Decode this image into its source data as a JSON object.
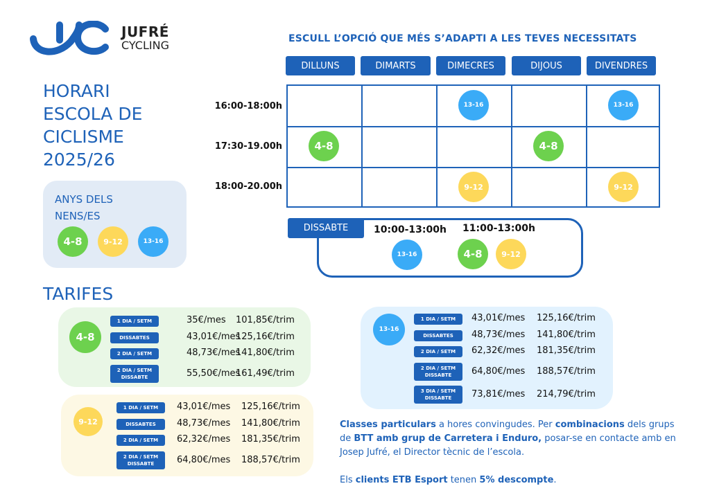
{
  "brand": {
    "name": "JUFRÉ",
    "sub": "CYCLING",
    "logo_text": "JC"
  },
  "title_lines": [
    "HORARI",
    "ESCOLA DE",
    "CICLISME",
    "2025/26"
  ],
  "headline": "ESCULL L’OPCIÓ QUE MÉS S’ADAPTI A LES TEVES NECESSITATS",
  "days": [
    "DILLUNS",
    "DIMARTS",
    "DIMECRES",
    "DIJOUS",
    "DIVENDRES"
  ],
  "times": [
    "16:00-18:00h",
    "17:30-19.00h",
    "18:00-20.00h"
  ],
  "schedule": [
    {
      "row": 0,
      "col": 2,
      "group": "13-16"
    },
    {
      "row": 0,
      "col": 4,
      "group": "13-16"
    },
    {
      "row": 1,
      "col": 0,
      "group": "4-8"
    },
    {
      "row": 1,
      "col": 3,
      "group": "4-8"
    },
    {
      "row": 2,
      "col": 2,
      "group": "9-12"
    },
    {
      "row": 2,
      "col": 4,
      "group": "9-12"
    }
  ],
  "saturday": {
    "label": "DISSABTE",
    "slot1": "10:00-13:00h",
    "slot2": "11:00-13:00h",
    "groups1": [
      "13-16"
    ],
    "groups2": [
      "4-8",
      "9-12"
    ]
  },
  "ages": {
    "title_line1": "ANYS DELS",
    "title_line2": "NENS/ES",
    "groups": [
      "4-8",
      "9-12",
      "13-16"
    ]
  },
  "colors": {
    "4-8": "#6dd14e",
    "9-12": "#fdd85a",
    "13-16": "#3aabf7",
    "accent": "#1e62b8"
  },
  "tarifes_title": "TARIFES",
  "tariffs": [
    {
      "group": "4-8",
      "rows": [
        [
          "1 DIA / SETM",
          "35€/mes",
          "101,85€/trim"
        ],
        [
          "DISSABTES",
          "43,01€/mes",
          "125,16€/trim"
        ],
        [
          "2 DIA / SETM",
          "48,73€/mes",
          "141,80€/trim"
        ],
        [
          "2 DIA / SETM\nDISSABTE",
          "55,50€/mes",
          "161,49€/trim"
        ]
      ]
    },
    {
      "group": "9-12",
      "rows": [
        [
          "1 DIA / SETM",
          "43,01€/mes",
          "125,16€/trim"
        ],
        [
          "DISSABTES",
          "48,73€/mes",
          "141,80€/trim"
        ],
        [
          "2 DIA / SETM",
          "62,32€/mes",
          "181,35€/trim"
        ],
        [
          "2 DIA / SETM\nDISSABTE",
          "64,80€/mes",
          "188,57€/trim"
        ]
      ]
    },
    {
      "group": "13-16",
      "rows": [
        [
          "1 DIA / SETM",
          "43,01€/mes",
          "125,16€/trim"
        ],
        [
          "DISSABTES",
          "48,73€/mes",
          "141,80€/trim"
        ],
        [
          "2 DIA / SETM",
          "62,32€/mes",
          "181,35€/trim"
        ],
        [
          "2 DIA / SETM\nDISSABTE",
          "64,80€/mes",
          "188,57€/trim"
        ],
        [
          "3 DIA / SETM\nDISSABTE",
          "73,81€/mes",
          "214,79€/trim"
        ]
      ]
    }
  ],
  "note": {
    "p1": [
      [
        "b",
        "Classes particulars"
      ],
      [
        "t",
        " a hores convingudes. Per "
      ],
      [
        "b",
        "combinacions"
      ],
      [
        "t",
        " dels grups de "
      ],
      [
        "b",
        "BTT amb grup de Carretera i Enduro,"
      ],
      [
        "t",
        " posar-se en contacte amb en Josep Jufré, el Director tècnic de l’escola."
      ]
    ],
    "p2": [
      [
        "t",
        "Els "
      ],
      [
        "b",
        "clients ETB Esport"
      ],
      [
        "t",
        " tenen "
      ],
      [
        "b",
        "5% descompte"
      ],
      [
        "t",
        "."
      ]
    ]
  }
}
